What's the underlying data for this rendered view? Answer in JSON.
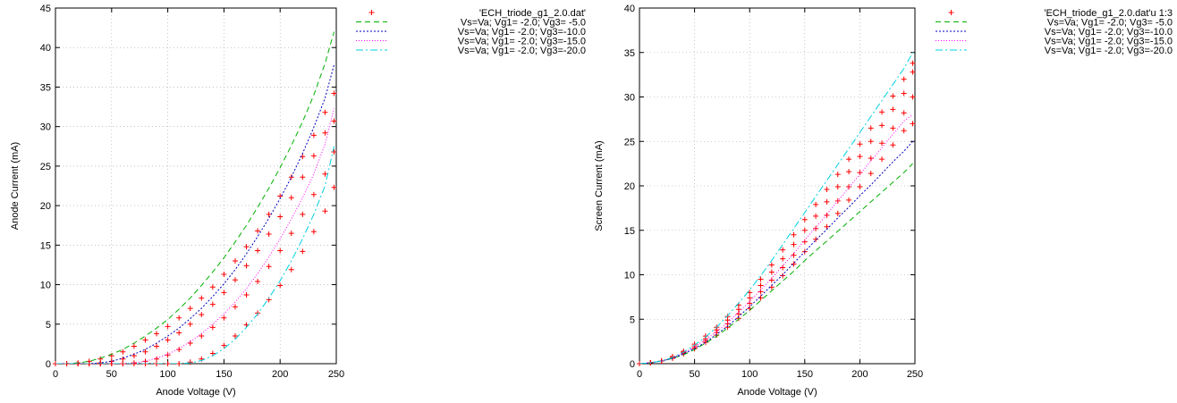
{
  "chart_data": [
    {
      "type": "scatter",
      "xlabel": "Anode Voltage (V)",
      "ylabel": "Anode Current (mA)",
      "xlim": [
        0,
        250
      ],
      "ylim": [
        0,
        45
      ],
      "xticks": [
        0,
        50,
        100,
        150,
        200,
        250
      ],
      "yticks": [
        0,
        5,
        10,
        15,
        20,
        25,
        30,
        35,
        40,
        45
      ],
      "grid": true,
      "legend_position": "top-right, outside plot",
      "series": [
        {
          "name": "'ECH_triode_g1_2.0.dat'",
          "kind": "points",
          "marker": "+",
          "color": "#ff0000",
          "groups": [
            {
              "x": [
                0,
                10,
                20,
                30,
                40,
                50,
                60,
                70,
                80,
                90,
                100,
                110,
                120,
                130,
                140,
                150,
                160,
                170,
                180,
                190,
                200,
                210,
                220,
                230,
                240,
                248
              ],
              "y": [
                0,
                0,
                0.1,
                0.3,
                0.6,
                1.0,
                1.5,
                2.2,
                3.0,
                3.8,
                4.7,
                5.8,
                7.0,
                8.3,
                9.7,
                11.3,
                13.0,
                14.8,
                16.8,
                18.9,
                21.2,
                23.6,
                26.2,
                28.9,
                31.8,
                34.2
              ]
            },
            {
              "x": [
                0,
                10,
                20,
                30,
                40,
                50,
                60,
                70,
                80,
                90,
                100,
                110,
                120,
                130,
                140,
                150,
                160,
                170,
                180,
                190,
                200,
                210,
                220,
                230,
                240,
                248
              ],
              "y": [
                0,
                0,
                0,
                0,
                0.1,
                0.3,
                0.6,
                1.0,
                1.5,
                2.2,
                3.0,
                3.9,
                5.0,
                6.2,
                7.5,
                9.0,
                10.6,
                12.4,
                14.3,
                16.4,
                18.6,
                21.0,
                23.6,
                26.3,
                29.2,
                30.7
              ]
            },
            {
              "x": [
                0,
                10,
                20,
                30,
                40,
                50,
                60,
                70,
                80,
                90,
                100,
                110,
                120,
                130,
                140,
                150,
                160,
                170,
                180,
                190,
                200,
                210,
                220,
                230,
                240,
                248
              ],
              "y": [
                0,
                0,
                0,
                0,
                0,
                0,
                0,
                0.1,
                0.3,
                0.6,
                1.1,
                1.8,
                2.6,
                3.5,
                4.6,
                5.8,
                7.2,
                8.7,
                10.4,
                12.3,
                14.3,
                16.5,
                18.9,
                21.4,
                24.0,
                26.8
              ]
            },
            {
              "x": [
                0,
                10,
                20,
                30,
                40,
                50,
                60,
                70,
                80,
                90,
                100,
                110,
                120,
                130,
                140,
                150,
                160,
                170,
                180,
                190,
                200,
                210,
                220,
                230,
                240,
                248
              ],
              "y": [
                0,
                0,
                0,
                0,
                0,
                0,
                0,
                0,
                0,
                0,
                0,
                0,
                0.2,
                0.6,
                1.3,
                2.3,
                3.5,
                4.9,
                6.4,
                8.1,
                9.9,
                11.9,
                14.2,
                16.7,
                19.3,
                22.3
              ]
            }
          ]
        },
        {
          "name": "Vs=Va; Vg1= -2.0; Vg3= -5.0",
          "kind": "line",
          "dash": "6,4",
          "color": "#00b000",
          "x": [
            0,
            10,
            20,
            30,
            40,
            50,
            60,
            70,
            80,
            90,
            100,
            110,
            120,
            130,
            140,
            150,
            160,
            170,
            180,
            190,
            200,
            210,
            220,
            230,
            240,
            248
          ],
          "y": [
            0,
            0,
            0.1,
            0.3,
            0.7,
            1.2,
            1.8,
            2.6,
            3.5,
            4.5,
            5.6,
            6.9,
            8.3,
            9.9,
            11.6,
            13.4,
            15.4,
            17.5,
            19.8,
            22.2,
            24.8,
            27.6,
            30.6,
            34.0,
            38.0,
            42.0
          ]
        },
        {
          "name": "Vs=Va; Vg1= -2.0; Vg3=-10.0",
          "kind": "line",
          "dash": "2,2",
          "color": "#0000c0",
          "x": [
            0,
            10,
            20,
            30,
            40,
            50,
            60,
            70,
            80,
            90,
            100,
            110,
            120,
            130,
            140,
            150,
            160,
            170,
            180,
            190,
            200,
            210,
            220,
            230,
            240,
            248
          ],
          "y": [
            0,
            0,
            0,
            0,
            0.1,
            0.3,
            0.7,
            1.2,
            1.8,
            2.6,
            3.5,
            4.5,
            5.7,
            7.0,
            8.5,
            10.1,
            11.9,
            13.9,
            16.1,
            18.4,
            20.9,
            23.6,
            26.6,
            29.9,
            33.6,
            37.8
          ]
        },
        {
          "name": "Vs=Va; Vg1= -2.0; Vg3=-15.0",
          "kind": "line",
          "dash": "1,2",
          "color": "#ff00ff",
          "x": [
            0,
            10,
            20,
            30,
            40,
            50,
            60,
            70,
            80,
            90,
            100,
            110,
            120,
            130,
            140,
            150,
            160,
            170,
            180,
            190,
            200,
            210,
            220,
            230,
            240,
            248
          ],
          "y": [
            0,
            0,
            0,
            0,
            0,
            0,
            0,
            0.1,
            0.3,
            0.7,
            1.2,
            1.9,
            2.8,
            3.8,
            5.0,
            6.3,
            7.8,
            9.5,
            11.4,
            13.5,
            15.8,
            18.3,
            21.0,
            24.0,
            27.8,
            32.3
          ]
        },
        {
          "name": "Vs=Va; Vg1= -2.0; Vg3=-20.0",
          "kind": "line",
          "dash": "8,3,2,3",
          "color": "#00d0e0",
          "x": [
            0,
            10,
            20,
            30,
            40,
            50,
            60,
            70,
            80,
            90,
            100,
            110,
            120,
            130,
            140,
            150,
            160,
            170,
            180,
            190,
            200,
            210,
            220,
            230,
            240,
            248
          ],
          "y": [
            0,
            0,
            0,
            0,
            0,
            0,
            0,
            0,
            0,
            0,
            0,
            0,
            0.1,
            0.4,
            1.0,
            1.9,
            3.1,
            4.6,
            6.3,
            8.3,
            10.5,
            13.0,
            15.8,
            18.9,
            22.5,
            27.5
          ]
        }
      ]
    },
    {
      "type": "scatter",
      "xlabel": "Anode Voltage (V)",
      "ylabel": "Screen Current (mA)",
      "xlim": [
        0,
        250
      ],
      "ylim": [
        0,
        40
      ],
      "xticks": [
        0,
        50,
        100,
        150,
        200,
        250
      ],
      "yticks": [
        0,
        5,
        10,
        15,
        20,
        25,
        30,
        35,
        40
      ],
      "grid": true,
      "legend_position": "top-right, outside plot",
      "series": [
        {
          "name": "'ECH_triode_g1_2.0.dat'u 1:3",
          "kind": "points",
          "marker": "+",
          "color": "#ff0000",
          "groups": [
            {
              "x": [
                0,
                10,
                20,
                30,
                40,
                50,
                60,
                70,
                80,
                90,
                100,
                110,
                120,
                130,
                140,
                150,
                160,
                170,
                180,
                190,
                200,
                210,
                220,
                230,
                240,
                248
              ],
              "y": [
                0,
                0.1,
                0.3,
                0.8,
                1.4,
                2.2,
                3.1,
                4.1,
                5.3,
                6.6,
                8.0,
                9.5,
                11.1,
                12.8,
                14.5,
                16.2,
                17.9,
                19.6,
                21.3,
                23.0,
                24.7,
                26.5,
                28.3,
                30.1,
                32.0,
                33.8
              ]
            },
            {
              "x": [
                0,
                10,
                20,
                30,
                40,
                50,
                60,
                70,
                80,
                90,
                100,
                110,
                120,
                130,
                140,
                150,
                160,
                170,
                180,
                190,
                200,
                210,
                220,
                230,
                240,
                248
              ],
              "y": [
                0,
                0.1,
                0.3,
                0.7,
                1.3,
                2.0,
                2.8,
                3.8,
                4.9,
                6.1,
                7.4,
                8.8,
                10.3,
                11.8,
                13.4,
                15.0,
                16.6,
                18.2,
                19.9,
                21.6,
                23.3,
                25.0,
                26.8,
                28.6,
                30.4,
                32.8
              ]
            },
            {
              "x": [
                0,
                10,
                20,
                30,
                40,
                50,
                60,
                70,
                80,
                90,
                100,
                110,
                120,
                130,
                140,
                150,
                160,
                170,
                180,
                190,
                200,
                210,
                220,
                230,
                240,
                248
              ],
              "y": [
                0,
                0.1,
                0.3,
                0.7,
                1.2,
                1.8,
                2.6,
                3.5,
                4.5,
                5.6,
                6.8,
                8.1,
                9.4,
                10.8,
                12.2,
                13.7,
                15.2,
                16.7,
                18.3,
                19.9,
                21.5,
                23.1,
                24.8,
                26.5,
                28.2,
                30.0
              ]
            },
            {
              "x": [
                0,
                10,
                20,
                30,
                40,
                50,
                60,
                70,
                80,
                90,
                100,
                110,
                120,
                130,
                140,
                150,
                160,
                170,
                180,
                190,
                200,
                210,
                220,
                230,
                240,
                248
              ],
              "y": [
                0,
                0.1,
                0.3,
                0.6,
                1.1,
                1.7,
                2.4,
                3.2,
                4.1,
                5.1,
                6.2,
                7.4,
                8.6,
                9.9,
                11.2,
                12.6,
                14.0,
                15.4,
                16.9,
                18.4,
                19.9,
                21.4,
                23.0,
                24.6,
                26.2,
                27.0
              ]
            }
          ]
        },
        {
          "name": "Vs=Va; Vg1= -2.0; Vg3= -5.0",
          "kind": "line",
          "dash": "6,4",
          "color": "#00b000",
          "x": [
            0,
            10,
            20,
            30,
            40,
            50,
            60,
            70,
            80,
            90,
            100,
            110,
            120,
            130,
            140,
            150,
            160,
            170,
            180,
            190,
            200,
            210,
            220,
            230,
            240,
            248
          ],
          "y": [
            0,
            0.1,
            0.3,
            0.6,
            1.0,
            1.6,
            2.3,
            3.1,
            4.0,
            5.0,
            6.0,
            7.1,
            8.2,
            9.3,
            10.4,
            11.6,
            12.7,
            13.8,
            14.9,
            16.0,
            17.1,
            18.2,
            19.3,
            20.4,
            21.5,
            22.5
          ]
        },
        {
          "name": "Vs=Va; Vg1= -2.0; Vg3=-10.0",
          "kind": "line",
          "dash": "2,2",
          "color": "#0000c0",
          "x": [
            0,
            10,
            20,
            30,
            40,
            50,
            60,
            70,
            80,
            90,
            100,
            110,
            120,
            130,
            140,
            150,
            160,
            170,
            180,
            190,
            200,
            210,
            220,
            230,
            240,
            248
          ],
          "y": [
            0,
            0.1,
            0.3,
            0.6,
            1.1,
            1.7,
            2.4,
            3.3,
            4.2,
            5.3,
            6.4,
            7.6,
            8.8,
            10.0,
            11.3,
            12.6,
            13.9,
            15.1,
            16.4,
            17.6,
            18.9,
            20.1,
            21.4,
            22.7,
            23.9,
            25.0
          ]
        },
        {
          "name": "Vs=Va; Vg1= -2.0; Vg3=-15.0",
          "kind": "line",
          "dash": "1,2",
          "color": "#ff00ff",
          "x": [
            0,
            10,
            20,
            30,
            40,
            50,
            60,
            70,
            80,
            90,
            100,
            110,
            120,
            130,
            140,
            150,
            160,
            170,
            180,
            190,
            200,
            210,
            220,
            230,
            240,
            248
          ],
          "y": [
            0,
            0.1,
            0.3,
            0.7,
            1.2,
            1.9,
            2.7,
            3.6,
            4.6,
            5.8,
            7.0,
            8.3,
            9.6,
            11.0,
            12.4,
            13.9,
            15.3,
            16.8,
            18.3,
            19.8,
            21.3,
            22.8,
            24.3,
            25.8,
            27.3,
            28.0
          ]
        },
        {
          "name": "Vs=Va; Vg1= -2.0; Vg3=-20.0",
          "kind": "line",
          "dash": "8,3,2,3",
          "color": "#00d0e0",
          "x": [
            0,
            10,
            20,
            30,
            40,
            50,
            60,
            70,
            80,
            90,
            100,
            110,
            120,
            130,
            140,
            150,
            160,
            170,
            180,
            190,
            200,
            210,
            220,
            230,
            240,
            248
          ],
          "y": [
            0,
            0.1,
            0.3,
            0.7,
            1.3,
            2.1,
            3.0,
            4.1,
            5.4,
            6.8,
            8.3,
            9.9,
            11.6,
            13.4,
            15.2,
            17.0,
            18.8,
            20.6,
            22.4,
            24.2,
            26.0,
            27.8,
            29.6,
            31.4,
            33.2,
            35.0
          ]
        }
      ]
    }
  ]
}
